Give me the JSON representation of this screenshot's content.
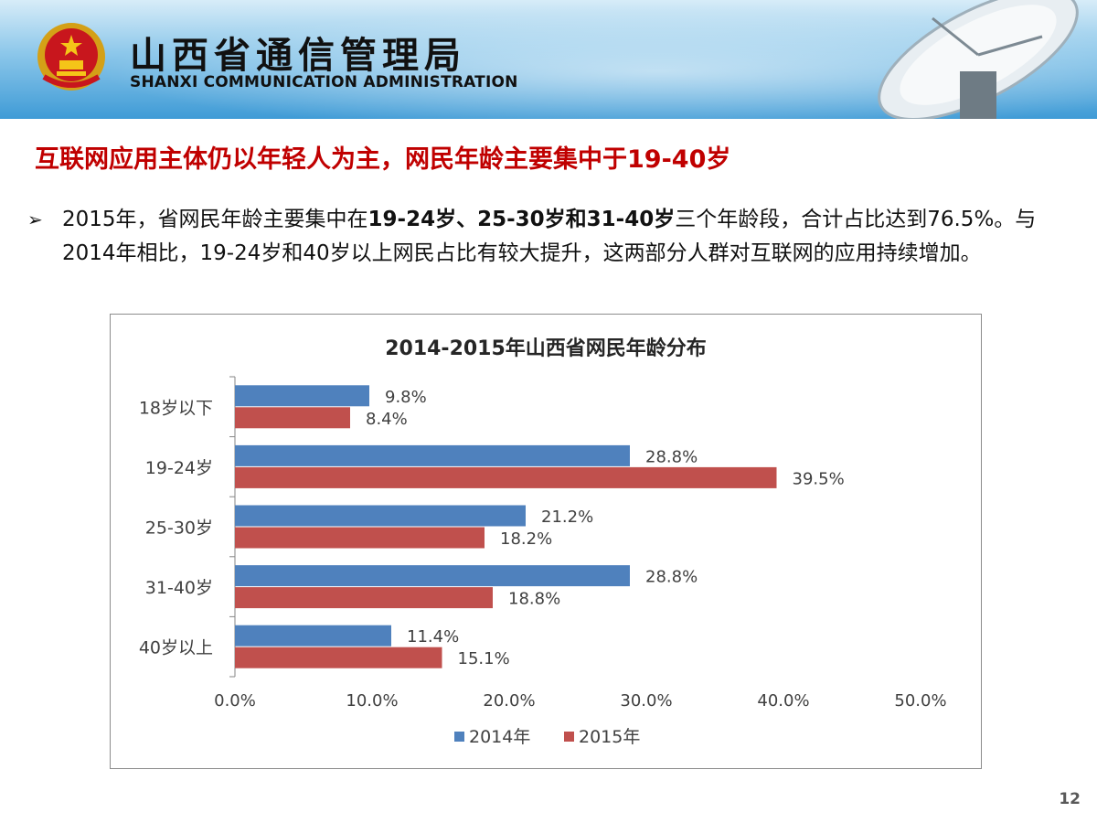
{
  "header": {
    "org_cn": "山西省通信管理局",
    "org_en": "SHANXI COMMUNICATION ADMINISTRATION"
  },
  "headline": "互联网应用主体仍以年轻人为主，网民年龄主要集中于19-40岁",
  "bullet": {
    "p1": "2015年，省网民年龄主要集中在",
    "bold": "19-24岁、25-30岁和31-40岁",
    "p2": "三个年龄段，合计占比达到76.5%。与2014年相比，19-24岁和40岁以上网民占比有较大提升，这两部分人群对互联网的应用持续增加。"
  },
  "page_number": "12",
  "chart_data": {
    "type": "bar",
    "orientation": "horizontal",
    "title": "2014-2015年山西省网民年龄分布",
    "categories": [
      "18岁以下",
      "19-24岁",
      "25-30岁",
      "31-40岁",
      "40岁以上"
    ],
    "series": [
      {
        "name": "2014年",
        "color": "#4f81bd",
        "values": [
          9.8,
          28.8,
          21.2,
          28.8,
          11.4
        ]
      },
      {
        "name": "2015年",
        "color": "#c0504d",
        "values": [
          8.4,
          39.5,
          18.2,
          18.8,
          15.1
        ]
      }
    ],
    "xlim": [
      0,
      50
    ],
    "xticks": [
      0,
      10,
      20,
      30,
      40,
      50
    ],
    "value_format": "percent_1dp",
    "grid": false,
    "legend_position": "bottom"
  }
}
